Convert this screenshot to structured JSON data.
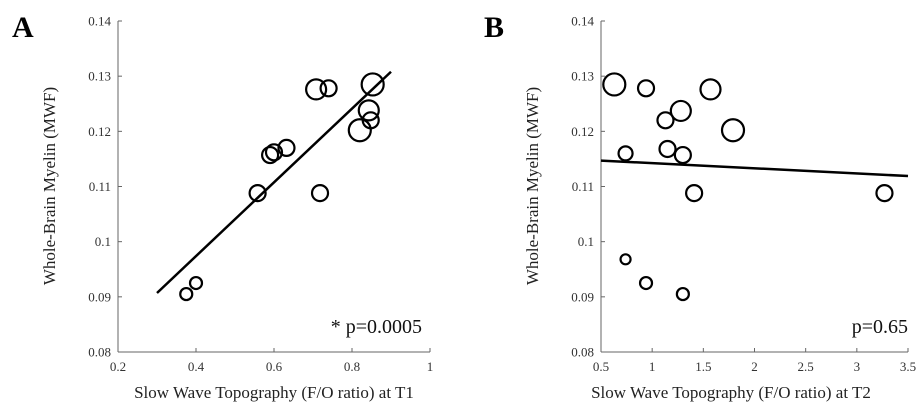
{
  "chart_data": [
    {
      "type": "scatter",
      "panel_label": "A",
      "xlabel": "Slow Wave Topography (F/O ratio) at T1",
      "ylabel": "Whole-Brain Myelin (MWF)",
      "xlim": [
        0.2,
        1.0
      ],
      "ylim": [
        0.08,
        0.14
      ],
      "xticks": [
        0.2,
        0.4,
        0.6,
        0.8,
        1.0
      ],
      "xtick_labels": [
        "0.2",
        "0.4",
        "0.6",
        "0.8",
        "1"
      ],
      "yticks": [
        0.08,
        0.09,
        0.1,
        0.11,
        0.12,
        0.13,
        0.14
      ],
      "ytick_labels": [
        "0.08",
        "0.09",
        "0.1",
        "0.11",
        "0.12",
        "0.13",
        "0.14"
      ],
      "points": [
        {
          "x": 0.375,
          "y": 0.0905,
          "r": 6
        },
        {
          "x": 0.4,
          "y": 0.0925,
          "r": 6
        },
        {
          "x": 0.558,
          "y": 0.1088,
          "r": 8
        },
        {
          "x": 0.59,
          "y": 0.1157,
          "r": 8
        },
        {
          "x": 0.6,
          "y": 0.1162,
          "r": 8
        },
        {
          "x": 0.632,
          "y": 0.117,
          "r": 8
        },
        {
          "x": 0.718,
          "y": 0.1088,
          "r": 8
        },
        {
          "x": 0.708,
          "y": 0.1276,
          "r": 10
        },
        {
          "x": 0.74,
          "y": 0.1278,
          "r": 8
        },
        {
          "x": 0.82,
          "y": 0.1202,
          "r": 11
        },
        {
          "x": 0.843,
          "y": 0.1238,
          "r": 10
        },
        {
          "x": 0.848,
          "y": 0.122,
          "r": 8
        },
        {
          "x": 0.853,
          "y": 0.1285,
          "r": 11
        }
      ],
      "fit_line": {
        "x": [
          0.3,
          0.9
        ],
        "y": [
          0.0907,
          0.1308
        ]
      },
      "annotation": "* p=0.0005"
    },
    {
      "type": "scatter",
      "panel_label": "B",
      "xlabel": "Slow Wave Topography (F/O ratio) at T2",
      "ylabel": "Whole-Brain Myelin (MWF)",
      "xlim": [
        0.5,
        3.5
      ],
      "ylim": [
        0.08,
        0.14
      ],
      "xticks": [
        0.5,
        1.0,
        1.5,
        2.0,
        2.5,
        3.0,
        3.5
      ],
      "xtick_labels": [
        "0.5",
        "1",
        "1.5",
        "2",
        "2.5",
        "3",
        "3.5"
      ],
      "yticks": [
        0.08,
        0.09,
        0.1,
        0.11,
        0.12,
        0.13,
        0.14
      ],
      "ytick_labels": [
        "0.08",
        "0.09",
        "0.1",
        "0.11",
        "0.12",
        "0.13",
        "0.14"
      ],
      "points": [
        {
          "x": 0.63,
          "y": 0.1285,
          "r": 11
        },
        {
          "x": 0.74,
          "y": 0.116,
          "r": 7
        },
        {
          "x": 0.74,
          "y": 0.0968,
          "r": 5
        },
        {
          "x": 0.94,
          "y": 0.1278,
          "r": 8
        },
        {
          "x": 0.94,
          "y": 0.0925,
          "r": 6
        },
        {
          "x": 1.13,
          "y": 0.122,
          "r": 8
        },
        {
          "x": 1.15,
          "y": 0.1168,
          "r": 8
        },
        {
          "x": 1.28,
          "y": 0.1237,
          "r": 10
        },
        {
          "x": 1.3,
          "y": 0.1157,
          "r": 8
        },
        {
          "x": 1.3,
          "y": 0.0905,
          "r": 6
        },
        {
          "x": 1.41,
          "y": 0.1088,
          "r": 8
        },
        {
          "x": 1.57,
          "y": 0.1276,
          "r": 10
        },
        {
          "x": 1.79,
          "y": 0.1202,
          "r": 11
        },
        {
          "x": 3.27,
          "y": 0.1088,
          "r": 8
        }
      ],
      "fit_line": {
        "x": [
          0.5,
          3.5
        ],
        "y": [
          0.1147,
          0.1119
        ]
      },
      "annotation": "p=0.65"
    }
  ]
}
